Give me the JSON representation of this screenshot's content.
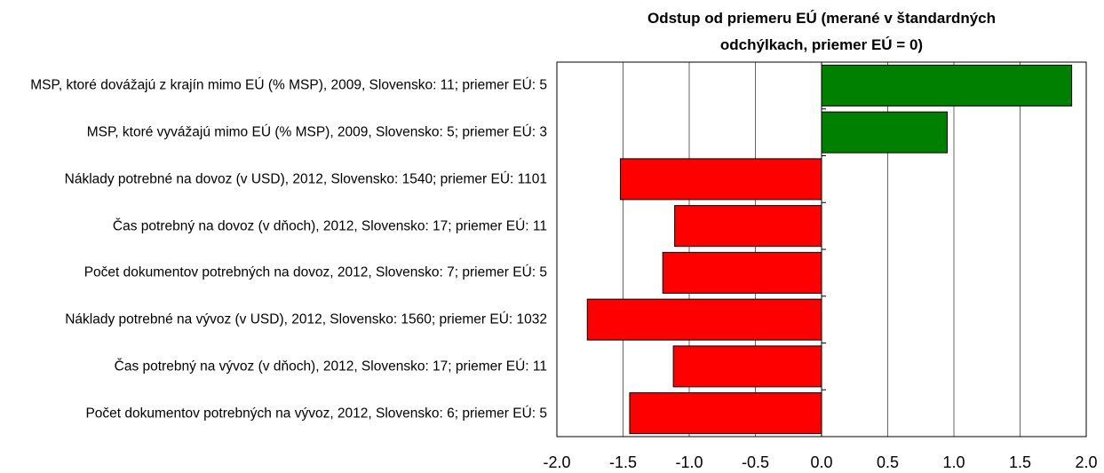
{
  "chart_data": {
    "type": "barh",
    "title": "Odstup od priemeru EÚ (merané v štandardných odchýlkach, priemer EÚ = 0)",
    "categories": [
      "MSP, ktoré dovážajú z krajín mimo EÚ (% MSP), 2009, Slovensko: 11; priemer EÚ: 5",
      "MSP, ktoré vyvážajú mimo EÚ (% MSP), 2009, Slovensko: 5; priemer EÚ: 3",
      "Náklady potrebné na dovoz (v USD), 2012, Slovensko: 1540; priemer EÚ: 1101",
      "Čas potrebný na dovoz (v dňoch), 2012, Slovensko: 17; priemer EÚ: 11",
      "Počet dokumentov potrebných na dovoz, 2012, Slovensko: 7; priemer EÚ: 5",
      "Náklady potrebné na vývoz (v USD), 2012, Slovensko: 1560; priemer EÚ: 1032",
      "Čas potrebný na vývoz (v dňoch), 2012, Slovensko: 17; priemer EÚ: 11",
      "Počet dokumentov potrebných na vývoz, 2012, Slovensko: 6; priemer EÚ: 5"
    ],
    "values": [
      1.89,
      0.95,
      -1.52,
      -1.11,
      -1.2,
      -1.77,
      -1.12,
      -1.45
    ],
    "colors": [
      "#008000",
      "#008000",
      "#ff0000",
      "#ff0000",
      "#ff0000",
      "#ff0000",
      "#ff0000",
      "#ff0000"
    ],
    "xlim": [
      -2,
      2
    ],
    "xticks": [
      {
        "value": -2,
        "label": "-2.0"
      },
      {
        "value": -1.5,
        "label": "-1.5"
      },
      {
        "value": -1,
        "label": "-1.0"
      },
      {
        "value": -0.5,
        "label": "-0.5"
      },
      {
        "value": 0,
        "label": "0.0"
      },
      {
        "value": 0.5,
        "label": "0.5"
      },
      {
        "value": 1,
        "label": "1.0"
      },
      {
        "value": 1.5,
        "label": "1.5"
      },
      {
        "value": 2,
        "label": "2.0"
      }
    ],
    "grid": true
  }
}
